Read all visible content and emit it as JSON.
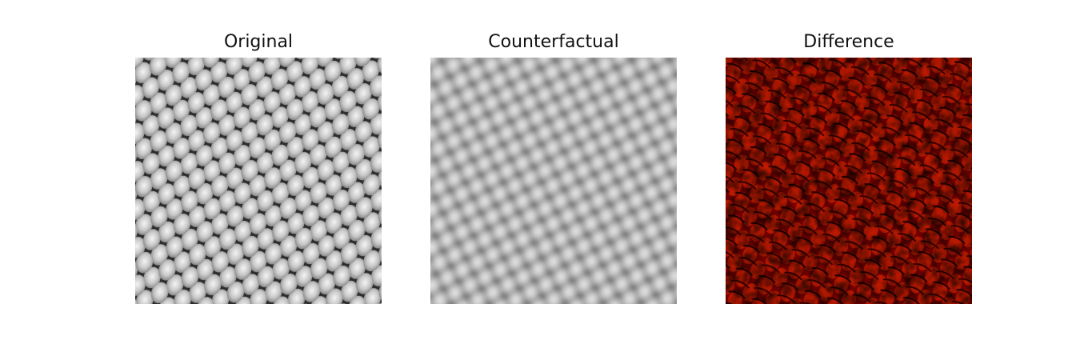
{
  "panels": [
    {
      "title": "Original",
      "colormap": "gray",
      "pattern": "sharp diamond mesh"
    },
    {
      "title": "Counterfactual",
      "colormap": "gray",
      "pattern": "blurred diamond mesh"
    },
    {
      "title": "Difference",
      "colormap": "hot",
      "pattern": "speckled difference map"
    }
  ]
}
